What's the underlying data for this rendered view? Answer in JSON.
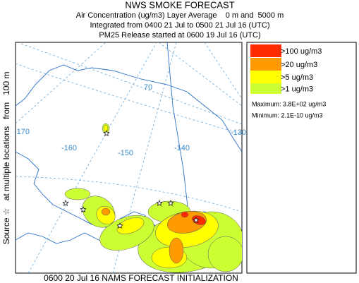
{
  "header": {
    "title": "NWS SMOKE FORECAST",
    "lines": [
      "Air Concentration (ug/m3) Layer Average    0 m and  5000 m",
      "Integrated from 0400 21 Jul to 0500 21 Jul 16 (UTC)",
      "PM25 Release started at 0600 19 Jul 16 (UTC)"
    ]
  },
  "map": {
    "side_label": "Source ☆   at multiple locations   from   100 m",
    "grid_labels": [
      "-170",
      "-160",
      "-150",
      "-140",
      "-130",
      "70"
    ]
  },
  "legend": {
    "entries": [
      {
        "label": ">100 ug/m3",
        "color": "#ff2a00"
      },
      {
        "label": ">20 ug/m3",
        "color": "#ff9a00"
      },
      {
        "label": ">5 ug/m3",
        "color": "#ffff00"
      },
      {
        "label": ">1 ug/m3",
        "color": "#ccff33"
      }
    ],
    "maximum": "Maximum: 3.8E+02 ug/m3",
    "minimum": "Minimum: 2.1E-10 ug/m3"
  },
  "footer": "0600 20 Jul 16 NAMS FORECAST INITIALIZATION"
}
